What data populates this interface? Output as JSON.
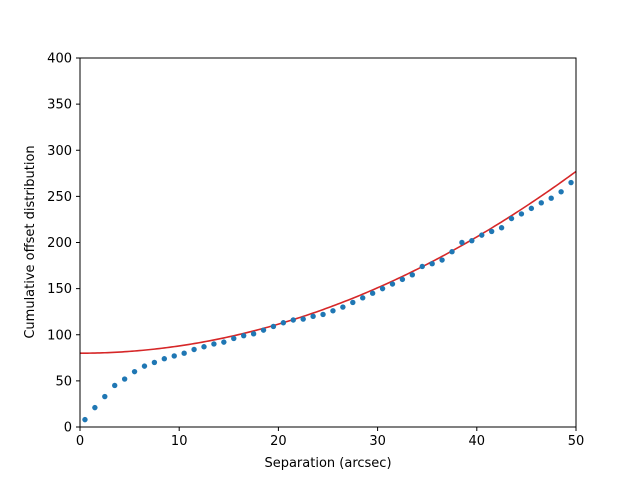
{
  "chart_data": {
    "type": "scatter",
    "title": "",
    "xlabel": "Separation (arcsec)",
    "ylabel": "Cumulative offset distribution",
    "xlim": [
      0,
      50
    ],
    "ylim": [
      0,
      400
    ],
    "xticks": [
      0,
      10,
      20,
      30,
      40,
      50
    ],
    "yticks": [
      0,
      50,
      100,
      150,
      200,
      250,
      300,
      350,
      400
    ],
    "grid": false,
    "legend": "none",
    "series": [
      {
        "kind": "scatter",
        "color": "#1f77b4",
        "x": [
          0.5,
          1.5,
          2.5,
          3.5,
          4.5,
          5.5,
          6.5,
          7.5,
          8.5,
          9.5,
          10.5,
          11.5,
          12.5,
          13.5,
          14.5,
          15.5,
          16.5,
          17.5,
          18.5,
          19.5,
          20.5,
          21.5,
          22.5,
          23.5,
          24.5,
          25.5,
          26.5,
          27.5,
          28.5,
          29.5,
          30.5,
          31.5,
          32.5,
          33.5,
          34.5,
          35.5,
          36.5,
          37.5,
          38.5,
          39.5,
          40.5,
          41.5,
          42.5,
          43.5,
          44.5,
          45.5,
          46.5,
          47.5,
          48.5,
          49.5
        ],
        "y": [
          8,
          21,
          33,
          45,
          52,
          60,
          66,
          70,
          74,
          77,
          80,
          84,
          87,
          90,
          92,
          96,
          99,
          101,
          105,
          109,
          113,
          116,
          117,
          120,
          122,
          126,
          130,
          135,
          140,
          145,
          150,
          155,
          160,
          165,
          174,
          177,
          181,
          190,
          200,
          202,
          208,
          212,
          216,
          226,
          231,
          237,
          243,
          248,
          255,
          265
        ]
      },
      {
        "kind": "line",
        "color": "#d62728",
        "model": "quadratic",
        "a": 80,
        "b": 0.0788
      }
    ]
  }
}
